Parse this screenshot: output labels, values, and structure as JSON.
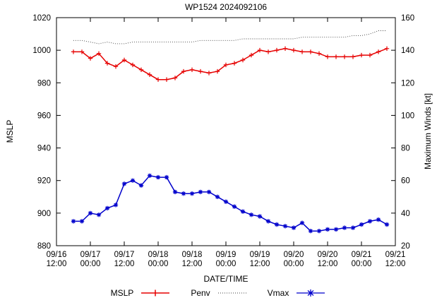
{
  "title": "WP1524 2024092106",
  "axes": {
    "ylabel_left": "MSLP",
    "ylabel_right": "Maximum Winds [kt]",
    "xlabel": "DATE/TIME"
  },
  "legend": {
    "mslp": "MSLP",
    "penv": "Penv",
    "vmax": "Vmax"
  },
  "colors": {
    "mslp": "#e60000",
    "penv": "#404040",
    "vmax": "#0000cc",
    "axis": "#000000"
  },
  "chart_data": {
    "type": "line",
    "title": "WP1524 2024092106",
    "xlabel": "DATE/TIME",
    "ylabel_left": "MSLP",
    "ylabel_right": "Maximum Winds [kt]",
    "xlim_hours": [
      0,
      120
    ],
    "ylim_left": [
      880,
      1020
    ],
    "ylim_right": [
      20,
      160
    ],
    "yticks_left": [
      880,
      900,
      920,
      940,
      960,
      980,
      1000,
      1020
    ],
    "yticks_right": [
      20,
      40,
      60,
      80,
      100,
      120,
      140,
      160
    ],
    "xticks": [
      {
        "hour": 0,
        "date": "09/16",
        "time": "12:00"
      },
      {
        "hour": 12,
        "date": "09/17",
        "time": "00:00"
      },
      {
        "hour": 24,
        "date": "09/17",
        "time": "12:00"
      },
      {
        "hour": 36,
        "date": "09/18",
        "time": "00:00"
      },
      {
        "hour": 48,
        "date": "09/18",
        "time": "12:00"
      },
      {
        "hour": 60,
        "date": "09/19",
        "time": "00:00"
      },
      {
        "hour": 72,
        "date": "09/19",
        "time": "12:00"
      },
      {
        "hour": 84,
        "date": "09/20",
        "time": "00:00"
      },
      {
        "hour": 96,
        "date": "09/20",
        "time": "12:00"
      },
      {
        "hour": 108,
        "date": "09/21",
        "time": "00:00"
      },
      {
        "hour": 120,
        "date": "09/21",
        "time": "12:00"
      }
    ],
    "x_hours": [
      6,
      9,
      12,
      15,
      18,
      21,
      24,
      27,
      30,
      33,
      36,
      39,
      42,
      45,
      48,
      51,
      54,
      57,
      60,
      63,
      66,
      69,
      72,
      75,
      78,
      81,
      84,
      87,
      90,
      93,
      96,
      99,
      102,
      105,
      108,
      111,
      114,
      117
    ],
    "series": [
      {
        "name": "Penv",
        "axis": "left",
        "color": "penv",
        "marker": "none",
        "dash": "1,2",
        "width": 0.9,
        "values": [
          1006,
          1006,
          1005,
          1004,
          1005,
          1004,
          1004,
          1005,
          1005,
          1005,
          1005,
          1005,
          1005,
          1005,
          1005,
          1006,
          1006,
          1006,
          1006,
          1006,
          1007,
          1007,
          1007,
          1007,
          1007,
          1007,
          1007,
          1008,
          1008,
          1008,
          1008,
          1008,
          1008,
          1009,
          1009,
          1010,
          1012,
          1012
        ]
      },
      {
        "name": "MSLP",
        "axis": "left",
        "color": "mslp",
        "marker": "plus",
        "dash": "",
        "width": 1.5,
        "values": [
          999,
          999,
          995,
          998,
          992,
          990,
          994,
          991,
          988,
          985,
          982,
          982,
          983,
          987,
          988,
          987,
          986,
          987,
          991,
          992,
          994,
          997,
          1000,
          999,
          1000,
          1001,
          1000,
          999,
          999,
          998,
          996,
          996,
          996,
          996,
          997,
          997,
          999,
          1001
        ]
      },
      {
        "name": "Vmax",
        "axis": "right",
        "color": "vmax",
        "marker": "star",
        "dash": "",
        "width": 1.5,
        "values": [
          35,
          35,
          40,
          39,
          43,
          45,
          58,
          60,
          57,
          63,
          62,
          62,
          53,
          52,
          52,
          53,
          53,
          50,
          47,
          44,
          41,
          39,
          38,
          35,
          33,
          32,
          31,
          34,
          29,
          29,
          30,
          30,
          31,
          31,
          33,
          35,
          36,
          33
        ]
      }
    ]
  }
}
